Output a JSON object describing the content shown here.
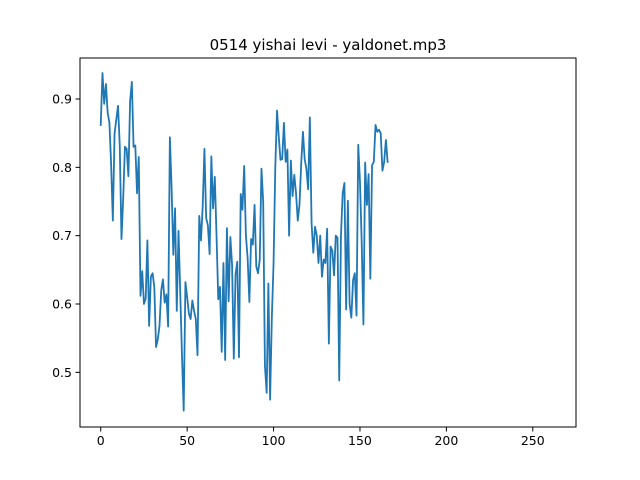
{
  "chart_data": {
    "type": "line",
    "title": "0514 yishai levi - yaldonet.mp3",
    "xlabel": "",
    "ylabel": "",
    "xlim": [
      -12,
      275
    ],
    "ylim": [
      0.42,
      0.96
    ],
    "xticks": [
      0,
      50,
      100,
      150,
      200,
      250
    ],
    "yticks": [
      0.5,
      0.6,
      0.7,
      0.8,
      0.9
    ],
    "grid": false,
    "line_color": "#1f77b4",
    "series": [
      {
        "values": [
          0.862,
          0.938,
          0.893,
          0.922,
          0.88,
          0.866,
          0.805,
          0.722,
          0.849,
          0.87,
          0.89,
          0.832,
          0.695,
          0.755,
          0.83,
          0.827,
          0.787,
          0.897,
          0.925,
          0.83,
          0.832,
          0.762,
          0.815,
          0.612,
          0.648,
          0.6,
          0.608,
          0.693,
          0.568,
          0.64,
          0.645,
          0.625,
          0.537,
          0.548,
          0.568,
          0.62,
          0.636,
          0.602,
          0.614,
          0.567,
          0.844,
          0.77,
          0.672,
          0.74,
          0.59,
          0.707,
          0.617,
          0.525,
          0.444,
          0.632,
          0.61,
          0.586,
          0.578,
          0.605,
          0.59,
          0.578,
          0.525,
          0.729,
          0.693,
          0.743,
          0.827,
          0.726,
          0.715,
          0.673,
          0.816,
          0.74,
          0.786,
          0.7,
          0.607,
          0.625,
          0.53,
          0.66,
          0.518,
          0.711,
          0.604,
          0.698,
          0.657,
          0.52,
          0.643,
          0.662,
          0.522,
          0.761,
          0.738,
          0.802,
          0.7,
          0.667,
          0.603,
          0.695,
          0.687,
          0.745,
          0.655,
          0.645,
          0.665,
          0.798,
          0.75,
          0.51,
          0.47,
          0.63,
          0.46,
          0.58,
          0.66,
          0.8,
          0.883,
          0.845,
          0.811,
          0.812,
          0.865,
          0.808,
          0.826,
          0.7,
          0.81,
          0.758,
          0.789,
          0.762,
          0.722,
          0.745,
          0.806,
          0.852,
          0.812,
          0.798,
          0.768,
          0.873,
          0.718,
          0.675,
          0.713,
          0.7,
          0.66,
          0.7,
          0.64,
          0.665,
          0.66,
          0.71,
          0.542,
          0.684,
          0.678,
          0.642,
          0.7,
          0.697,
          0.488,
          0.7,
          0.762,
          0.777,
          0.592,
          0.751,
          0.6,
          0.58,
          0.635,
          0.645,
          0.583,
          0.833,
          0.779,
          0.69,
          0.57,
          0.807,
          0.745,
          0.79,
          0.637,
          0.803,
          0.808,
          0.862,
          0.852,
          0.855,
          0.85,
          0.795,
          0.808,
          0.84,
          0.808
        ]
      }
    ]
  }
}
